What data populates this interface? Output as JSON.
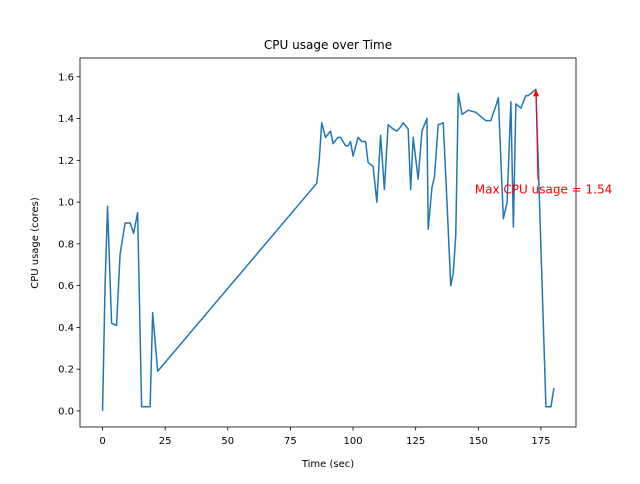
{
  "chart_data": {
    "type": "line",
    "title": "CPU usage over Time",
    "xlabel": "Time (sec)",
    "ylabel": "CPU usage (cores)",
    "x": [
      0,
      1,
      2,
      3.6,
      5.6,
      7,
      9,
      11,
      12.4,
      14,
      15.6,
      19,
      20,
      22,
      85.5,
      86.5,
      87.5,
      89,
      91,
      92,
      94,
      95,
      97,
      98,
      99,
      100,
      102,
      103.5,
      105,
      106,
      108,
      109.5,
      111,
      112.5,
      114,
      116,
      117.5,
      119,
      120,
      122,
      123,
      124,
      126,
      127.5,
      129.5,
      130,
      131.5,
      132.5,
      134,
      136,
      137.5,
      139,
      140,
      141,
      142,
      143.5,
      146,
      149,
      151,
      153,
      155,
      157,
      158,
      160,
      161.5,
      163,
      164,
      165,
      167,
      169,
      170,
      172,
      173,
      177,
      179,
      180.2
    ],
    "values": [
      0,
      0.6,
      0.98,
      0.42,
      0.41,
      0.75,
      0.9,
      0.9,
      0.85,
      0.95,
      0.02,
      0.02,
      0.47,
      0.19,
      1.09,
      1.2,
      1.38,
      1.31,
      1.34,
      1.28,
      1.31,
      1.31,
      1.27,
      1.27,
      1.29,
      1.22,
      1.31,
      1.29,
      1.29,
      1.19,
      1.17,
      1.0,
      1.32,
      1.06,
      1.37,
      1.35,
      1.34,
      1.36,
      1.38,
      1.35,
      1.06,
      1.31,
      1.11,
      1.34,
      1.4,
      0.87,
      1.07,
      1.12,
      1.37,
      1.38,
      1.0,
      0.6,
      0.66,
      0.84,
      1.52,
      1.42,
      1.44,
      1.43,
      1.41,
      1.39,
      1.39,
      1.46,
      1.5,
      0.92,
      1.0,
      1.48,
      0.88,
      1.47,
      1.45,
      1.51,
      1.51,
      1.53,
      1.54,
      0.02,
      0.02,
      0.11
    ],
    "color": "#1f77b4",
    "xlim": [
      -9,
      189
    ],
    "ylim": [
      -0.077,
      1.69
    ],
    "xticks": [
      0,
      25,
      50,
      75,
      100,
      125,
      150,
      175
    ],
    "yticks": [
      {
        "value": 0,
        "label": "0.0"
      },
      0.2,
      0.4,
      0.6,
      0.8,
      {
        "value": 1,
        "label": "1.0"
      },
      1.2,
      1.4,
      1.6
    ],
    "annotation": {
      "text": "Max CPU usage = 1.54",
      "xy": [
        173,
        1.54
      ],
      "xytext": [
        148.6,
        1.04
      ],
      "color": "#ff0000"
    }
  }
}
